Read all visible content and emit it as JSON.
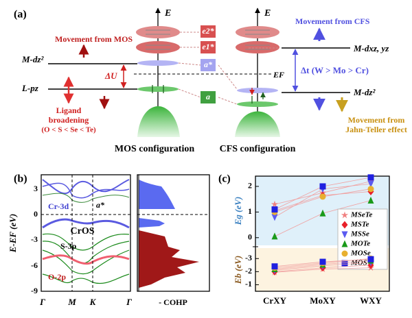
{
  "panel_a": {
    "label": "(a)",
    "axis_e_left": "E",
    "axis_e_right": "E",
    "mos_movement": "Movement from MOS",
    "m_dz2_left": "M-dz²",
    "delta_u": "ΔU",
    "l_pz": "L-pz",
    "ligand": "Ligand",
    "ligand_2": "broadening",
    "ligand_order": "(O < S < Se < Te)",
    "e2": "e2*",
    "e1": "e1*",
    "a_star": "a*",
    "a": "a",
    "ef": "EF",
    "cfs_movement": "Movement from CFS",
    "m_dxz": "M-dxz, yz",
    "delta_t": "Δt (W > Mo > Cr)",
    "m_dz2_right": "M-dz²",
    "jt_1": "Movement from",
    "jt_2": "Jahn-Teller effect",
    "mos_config": "MOS configuration",
    "cfs_config": "CFS configuration"
  },
  "panel_b": {
    "label": "(b)",
    "ylabel": "E-EF (eV)",
    "yticks": [
      "3",
      "0",
      "-3",
      "-6",
      "-9"
    ],
    "kpoints": [
      "Γ",
      "M",
      "K",
      "Γ"
    ],
    "cr3d": "Cr-3d",
    "a_star": "a*",
    "title": "CrOS",
    "s3p": "S-3p",
    "o2p": "O-2p",
    "cohp": "- COHP"
  },
  "panel_c": {
    "label": "(c)"
  },
  "chart_data": [
    {
      "type": "scatter",
      "ylabel": "Eg (eV)",
      "categories": [
        "CrXY",
        "MoXY",
        "WXY"
      ],
      "ylim": [
        -0.3,
        2.4
      ],
      "yticks": [
        0,
        1,
        2
      ],
      "series": [
        {
          "name": "MSeTe",
          "color": "#f08080",
          "marker": "star",
          "values": [
            1.3,
            1.75,
            2.2
          ]
        },
        {
          "name": "MSTe",
          "color": "#e8202a",
          "marker": "diamond",
          "values": [
            1.05,
            1.65,
            1.8
          ]
        },
        {
          "name": "MSSe",
          "color": "#5a5af0",
          "marker": "triangle-down",
          "values": [
            0.8,
            1.9,
            2.1
          ]
        },
        {
          "name": "MOTe",
          "color": "#1a9a1a",
          "marker": "triangle",
          "values": [
            0.05,
            0.95,
            1.45
          ]
        },
        {
          "name": "MOSe",
          "color": "#e8b030",
          "marker": "circle",
          "values": [
            1.0,
            1.6,
            1.9
          ]
        },
        {
          "name": "MOS",
          "color": "#2020e0",
          "marker": "square",
          "values": [
            1.1,
            2.0,
            2.35
          ]
        }
      ]
    },
    {
      "type": "scatter",
      "ylabel": "Eb (eV)",
      "ylim": [
        -0.5,
        -3.8
      ],
      "yticks": [
        -1,
        -2,
        -3
      ],
      "series": [
        {
          "color": "#f08080",
          "marker": "star",
          "values": [
            -1.95,
            -2.2,
            -2.3
          ]
        },
        {
          "color": "#e8202a",
          "marker": "diamond",
          "values": [
            -2.0,
            -2.3,
            -2.5
          ]
        },
        {
          "color": "#5a5af0",
          "marker": "triangle-down",
          "values": [
            -2.1,
            -2.45,
            -2.7
          ]
        },
        {
          "color": "#1a9a1a",
          "marker": "triangle",
          "values": [
            -2.2,
            -2.55,
            -2.85
          ]
        },
        {
          "color": "#e8b030",
          "marker": "circle",
          "values": [
            -2.3,
            -2.65,
            -3.0
          ]
        },
        {
          "color": "#2020e0",
          "marker": "square",
          "values": [
            -2.4,
            -2.75,
            -2.95
          ]
        }
      ]
    }
  ]
}
